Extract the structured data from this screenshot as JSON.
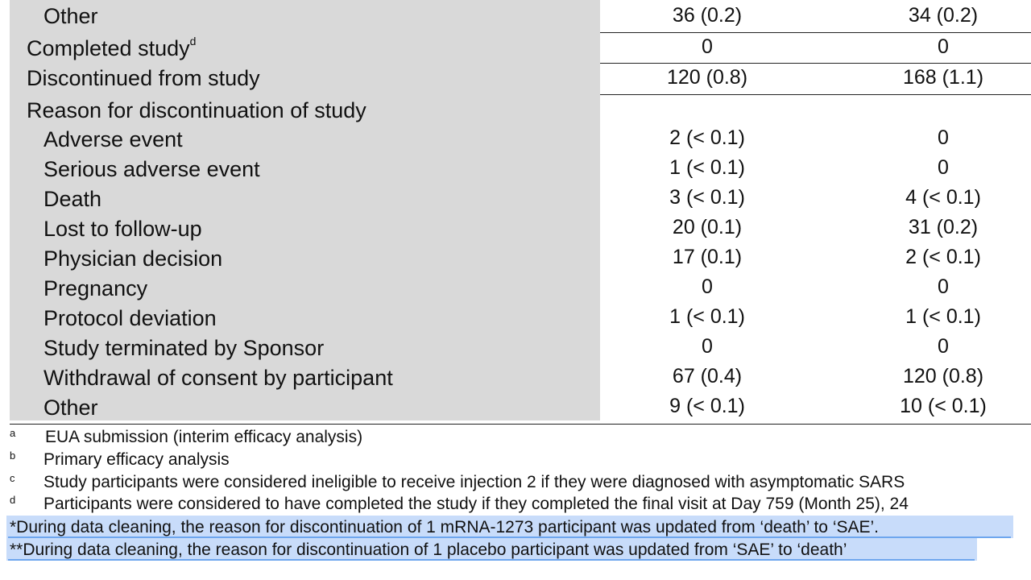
{
  "table": {
    "rows": [
      {
        "label": "Other",
        "col1": "36 (0.2)",
        "col2": "34 (0.2)"
      },
      {
        "label": "Completed study",
        "sup": "d",
        "col1": "0",
        "col2": "0"
      },
      {
        "label": "Discontinued from study",
        "col1": "120 (0.8)",
        "col2": "168 (1.1)"
      },
      {
        "label": "Reason for discontinuation of study",
        "col1": "",
        "col2": ""
      },
      {
        "label": "Adverse event",
        "col1": "2 (< 0.1)",
        "col2": "0"
      },
      {
        "label": "Serious adverse event",
        "col1": "1 (< 0.1)",
        "col2": "0"
      },
      {
        "label": "Death",
        "col1": "3 (< 0.1)",
        "col2": "4 (< 0.1)"
      },
      {
        "label": "Lost to follow-up",
        "col1": "20 (0.1)",
        "col2": "31 (0.2)"
      },
      {
        "label": "Physician decision",
        "col1": "17 (0.1)",
        "col2": "2 (< 0.1)"
      },
      {
        "label": "Pregnancy",
        "col1": "0",
        "col2": "0"
      },
      {
        "label": "Protocol deviation",
        "col1": "1 (< 0.1)",
        "col2": "1 (< 0.1)"
      },
      {
        "label": "Study terminated by Sponsor",
        "col1": "0",
        "col2": "0"
      },
      {
        "label": "Withdrawal of consent by participant",
        "col1": "67 (0.4)",
        "col2": "120 (0.8)"
      },
      {
        "label": "Other",
        "col1": "9 (< 0.1)",
        "col2": "10 (< 0.1)"
      }
    ]
  },
  "footnotes": [
    {
      "mark": "a",
      "text": "EUA submission (interim efficacy analysis)"
    },
    {
      "mark": "b",
      "text": "Primary efficacy analysis"
    },
    {
      "mark": "c",
      "text": "Study participants were considered ineligible to receive injection 2 if they were diagnosed with asymptomatic SARS"
    },
    {
      "mark": "d",
      "text": "Participants were considered to have completed the study if they completed the final visit at Day 759 (Month 25), 24"
    }
  ],
  "notes": [
    "*During data cleaning, the reason for discontinuation of 1 mRNA-1273 participant was updated from ‘death’ to ‘SAE’.",
    "**During data cleaning, the reason for discontinuation of 1 placebo participant was updated from ‘SAE’ to ‘death’"
  ],
  "colors": {
    "label_bg": "#d9d9d9",
    "highlight": "#c8dcfa",
    "highlight_line": "#6ea6ee"
  }
}
